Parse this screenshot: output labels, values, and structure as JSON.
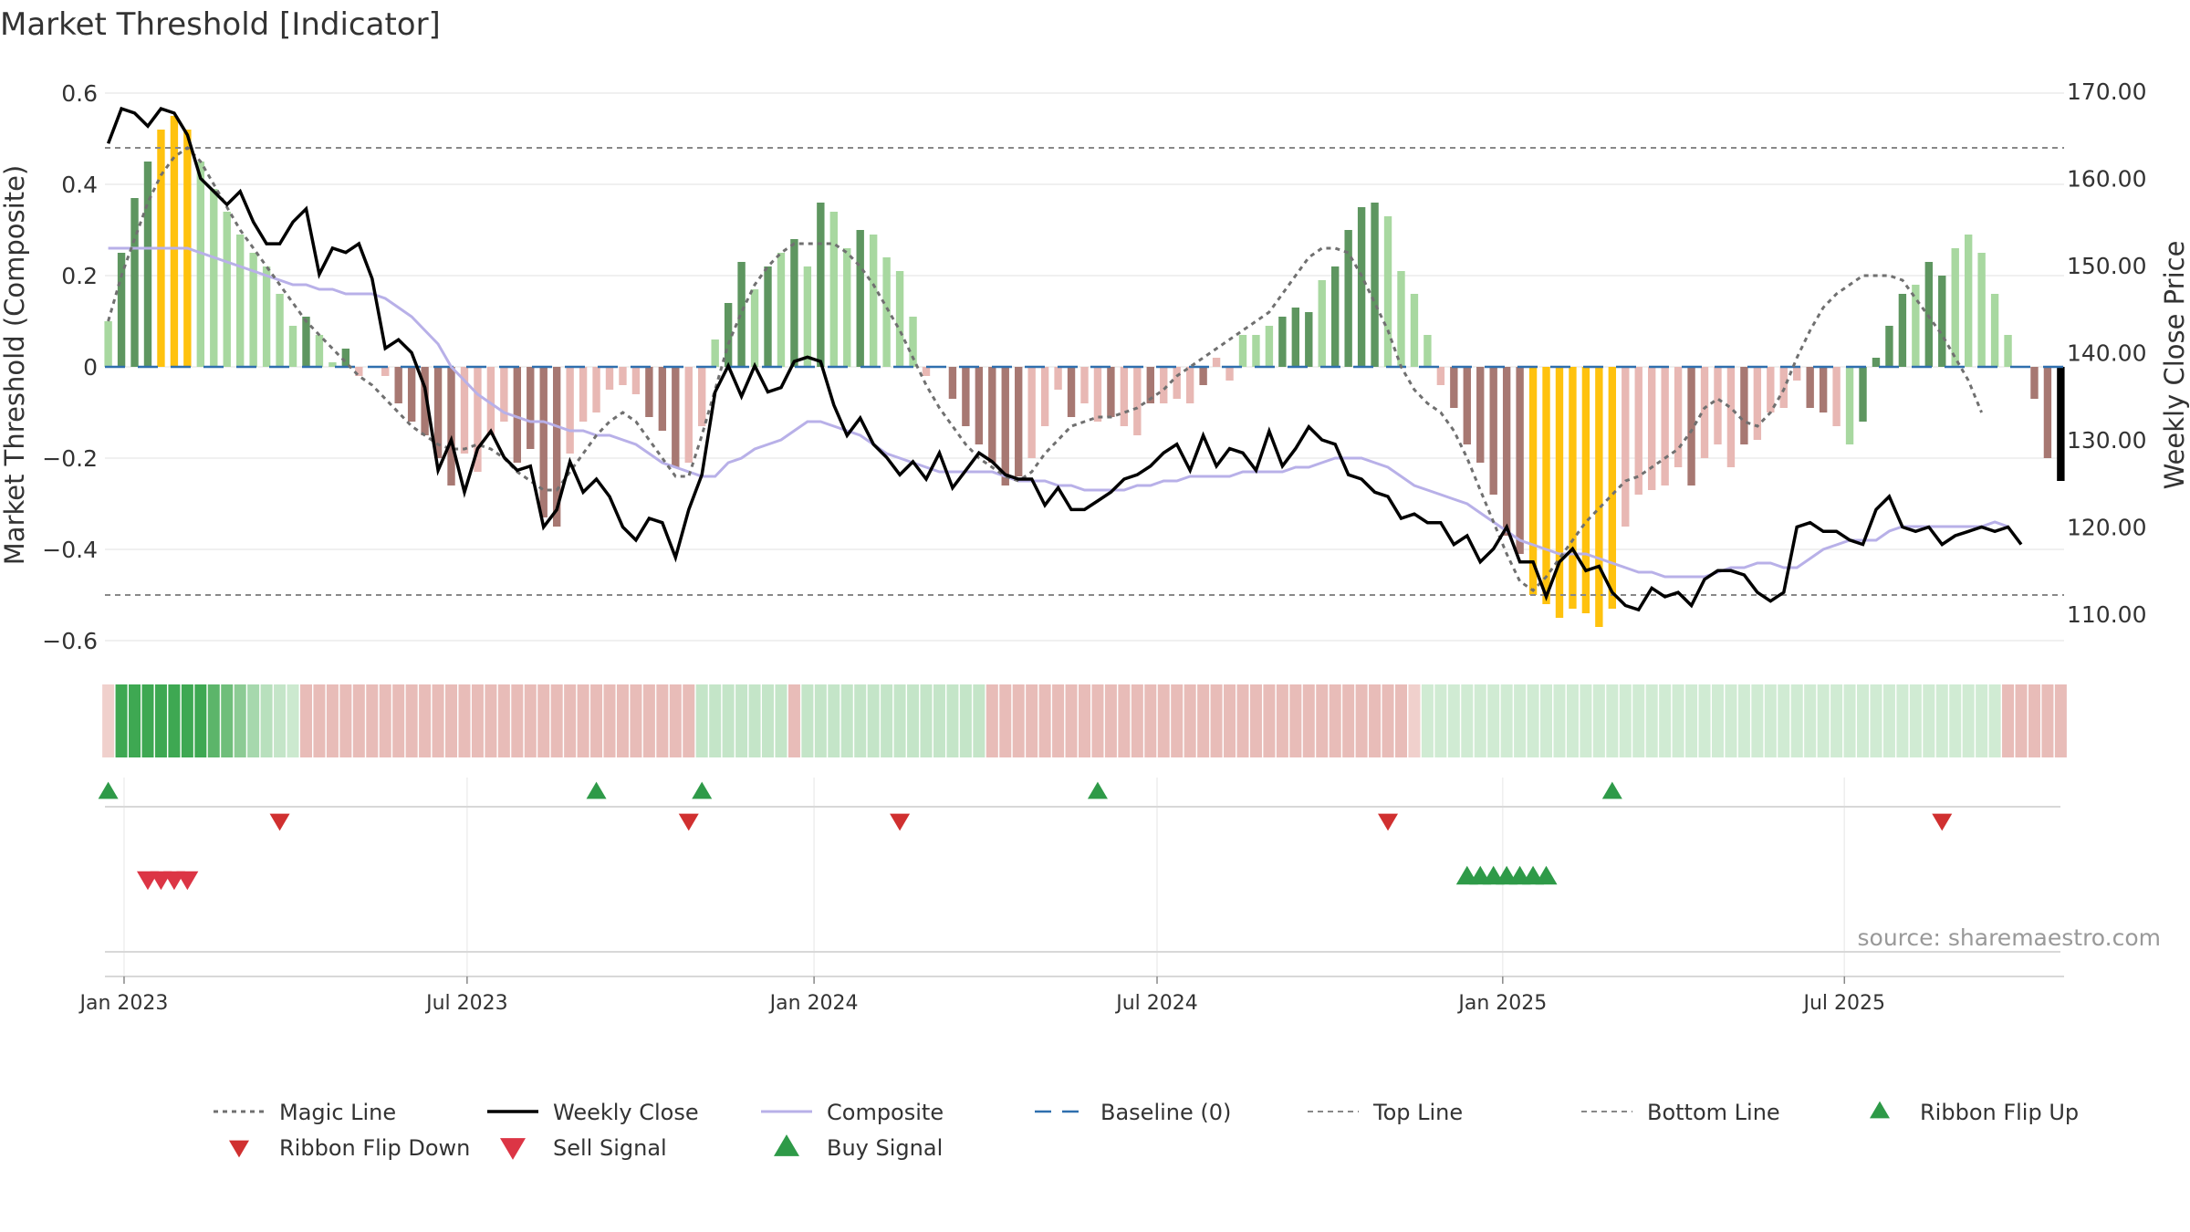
{
  "title": "Market Threshold [Indicator]",
  "source_note": "source: sharemaestro.com",
  "chart_data": {
    "type": "bar",
    "title": "Market Threshold [Indicator]",
    "ylabel": "Market Threshold (Composite)",
    "y2label": "Weekly Close Price",
    "ylim": [
      -0.6,
      0.6
    ],
    "y2lim": [
      110,
      170
    ],
    "yticks": [
      0.6,
      0.4,
      0.2,
      0,
      -0.2,
      -0.4,
      -0.6
    ],
    "ytick_labels": [
      "0.6",
      "0.4",
      "0.2",
      "0",
      "−0.2",
      "−0.4",
      "−0.6"
    ],
    "y2ticks": [
      170,
      160,
      150,
      140,
      130,
      120,
      110
    ],
    "y2tick_labels": [
      "170.00",
      "160.00",
      "150.00",
      "140.00",
      "130.00",
      "120.00",
      "110.00"
    ],
    "xticks": [
      {
        "label": "Jan 2023",
        "week": 1.2
      },
      {
        "label": "Jul 2023",
        "week": 27.2
      },
      {
        "label": "Jan 2024",
        "week": 53.5
      },
      {
        "label": "Jul 2024",
        "week": 79.5
      },
      {
        "label": "Jan 2025",
        "week": 105.7
      },
      {
        "label": "Jul 2025",
        "week": 131.6
      }
    ],
    "top_line": 0.48,
    "bottom_line": -0.5,
    "composite": [
      0.1,
      0.25,
      0.37,
      0.45,
      0.52,
      0.55,
      0.52,
      0.45,
      0.39,
      0.34,
      0.29,
      0.25,
      0.22,
      0.16,
      0.09,
      0.11,
      0.07,
      0.01,
      0.04,
      -0.02,
      0.0,
      -0.02,
      -0.08,
      -0.12,
      -0.15,
      -0.2,
      -0.26,
      -0.19,
      -0.23,
      -0.15,
      -0.12,
      -0.21,
      -0.18,
      -0.33,
      -0.35,
      -0.19,
      -0.12,
      -0.1,
      -0.05,
      -0.04,
      -0.06,
      -0.11,
      -0.14,
      -0.22,
      -0.21,
      -0.13,
      0.06,
      0.14,
      0.23,
      0.17,
      0.22,
      0.25,
      0.28,
      0.22,
      0.36,
      0.34,
      0.26,
      0.3,
      0.29,
      0.24,
      0.21,
      0.11,
      -0.02,
      0.0,
      -0.07,
      -0.13,
      -0.17,
      -0.21,
      -0.26,
      -0.24,
      -0.2,
      -0.13,
      -0.05,
      -0.11,
      -0.08,
      -0.12,
      -0.11,
      -0.13,
      -0.15,
      -0.08,
      -0.08,
      -0.07,
      -0.08,
      -0.04,
      0.02,
      -0.03,
      0.07,
      0.07,
      0.09,
      0.11,
      0.13,
      0.12,
      0.19,
      0.22,
      0.3,
      0.35,
      0.36,
      0.33,
      0.21,
      0.16,
      0.07,
      -0.04,
      -0.09,
      -0.17,
      -0.21,
      -0.28,
      -0.37,
      -0.41,
      -0.5,
      -0.52,
      -0.55,
      -0.53,
      -0.54,
      -0.57,
      -0.53,
      -0.35,
      -0.28,
      -0.27,
      -0.26,
      -0.22,
      -0.26,
      -0.2,
      -0.17,
      -0.22,
      -0.17,
      -0.16,
      -0.1,
      -0.09,
      -0.03,
      -0.09,
      -0.1,
      -0.13,
      -0.17,
      -0.12,
      0.02,
      0.09,
      0.16,
      0.18,
      0.23,
      0.2,
      0.26,
      0.29,
      0.25,
      0.16,
      0.07,
      0.0,
      -0.07,
      -0.2,
      -0.25
    ],
    "bar_colors": [
      "#a8d8a0",
      "#5e9660",
      "#5e9660",
      "#5e9660",
      "#ffc20e",
      "#ffc20e",
      "#ffc20e",
      "#a8d8a0",
      "#a8d8a0",
      "#a8d8a0",
      "#a8d8a0",
      "#a8d8a0",
      "#a8d8a0",
      "#a8d8a0",
      "#a8d8a0",
      "#5e9660",
      "#a8d8a0",
      "#a8d8a0",
      "#5e9660",
      "#e8b8b4",
      "#e8b8b4",
      "#e8b8b4",
      "#a77872",
      "#a77872",
      "#a77872",
      "#a77872",
      "#a77872",
      "#e8b8b4",
      "#e8b8b4",
      "#e8b8b4",
      "#e8b8b4",
      "#a77872",
      "#a77872",
      "#a77872",
      "#a77872",
      "#e8b8b4",
      "#e8b8b4",
      "#e8b8b4",
      "#e8b8b4",
      "#e8b8b4",
      "#e8b8b4",
      "#a77872",
      "#a77872",
      "#a77872",
      "#e8b8b4",
      "#e8b8b4",
      "#a8d8a0",
      "#5e9660",
      "#5e9660",
      "#a8d8a0",
      "#5e9660",
      "#a8d8a0",
      "#5e9660",
      "#a8d8a0",
      "#5e9660",
      "#a8d8a0",
      "#a8d8a0",
      "#5e9660",
      "#a8d8a0",
      "#a8d8a0",
      "#a8d8a0",
      "#a8d8a0",
      "#e8b8b4",
      "#e8b8b4",
      "#a77872",
      "#a77872",
      "#a77872",
      "#a77872",
      "#a77872",
      "#a77872",
      "#e8b8b4",
      "#e8b8b4",
      "#e8b8b4",
      "#a77872",
      "#e8b8b4",
      "#e8b8b4",
      "#a77872",
      "#e8b8b4",
      "#e8b8b4",
      "#a77872",
      "#e8b8b4",
      "#e8b8b4",
      "#e8b8b4",
      "#a77872",
      "#e8b8b4",
      "#e8b8b4",
      "#a8d8a0",
      "#a8d8a0",
      "#a8d8a0",
      "#5e9660",
      "#5e9660",
      "#5e9660",
      "#a8d8a0",
      "#5e9660",
      "#5e9660",
      "#5e9660",
      "#5e9660",
      "#a8d8a0",
      "#a8d8a0",
      "#a8d8a0",
      "#a8d8a0",
      "#e8b8b4",
      "#a77872",
      "#a77872",
      "#a77872",
      "#a77872",
      "#a77872",
      "#a77872",
      "#ffc20e",
      "#ffc20e",
      "#ffc20e",
      "#ffc20e",
      "#ffc20e",
      "#ffc20e",
      "#ffc20e",
      "#e8b8b4",
      "#e8b8b4",
      "#e8b8b4",
      "#e8b8b4",
      "#e8b8b4",
      "#a77872",
      "#e8b8b4",
      "#e8b8b4",
      "#e8b8b4",
      "#a77872",
      "#e8b8b4",
      "#e8b8b4",
      "#e8b8b4",
      "#e8b8b4",
      "#a77872",
      "#a77872",
      "#e8b8b4",
      "#a8d8a0",
      "#5e9660",
      "#5e9660",
      "#5e9660",
      "#5e9660",
      "#a8d8a0",
      "#5e9660",
      "#5e9660",
      "#a8d8a0",
      "#a8d8a0",
      "#a8d8a0",
      "#a8d8a0",
      "#a8d8a0",
      "#a77872",
      "#a77872",
      "#a77872"
    ],
    "weekly_close": [
      164,
      168,
      167.5,
      166,
      168,
      167.5,
      165,
      160,
      158.5,
      157,
      158.5,
      155,
      152.5,
      152.5,
      155,
      156.5,
      149,
      152,
      151.5,
      152.5,
      148.5,
      140.5,
      141.5,
      140,
      136,
      126.5,
      130,
      124,
      129,
      131,
      128,
      126.5,
      127,
      120,
      122,
      127.5,
      124,
      125.5,
      123.5,
      120,
      118.5,
      121,
      120.5,
      116.5,
      122,
      126,
      135.5,
      138.5,
      135,
      138.5,
      135.5,
      136,
      139,
      139.5,
      139,
      134,
      130.5,
      132.5,
      129.5,
      128,
      126,
      127.5,
      125.5,
      128.5,
      124.5,
      126.5,
      128.5,
      127.5,
      126,
      125.5,
      125.5,
      122.5,
      124.5,
      122,
      122,
      123,
      124,
      125.5,
      126,
      127,
      128.5,
      129.5,
      126.5,
      130.5,
      127,
      129,
      128.5,
      126.5,
      131,
      127,
      129,
      131.5,
      130,
      129.5,
      126,
      125.5,
      124,
      123.5,
      121,
      121.5,
      120.5,
      120.5,
      118,
      119,
      116,
      117.5,
      120,
      116,
      116,
      112,
      116,
      117.5,
      115,
      115.5,
      112.5,
      111,
      110.5,
      113,
      112,
      112.5,
      111,
      114,
      115,
      115,
      114.5,
      112.5,
      111.5,
      112.5,
      120,
      120.5,
      119.5,
      119.5,
      118.5,
      118,
      122,
      123.5,
      120,
      119.5,
      120,
      118,
      119,
      119.5,
      120,
      119.5,
      120,
      118
    ],
    "magic_line": [
      0.1,
      0.2,
      0.28,
      0.36,
      0.42,
      0.46,
      0.48,
      0.45,
      0.4,
      0.35,
      0.3,
      0.26,
      0.22,
      0.18,
      0.14,
      0.1,
      0.07,
      0.04,
      0.01,
      -0.02,
      -0.04,
      -0.07,
      -0.1,
      -0.13,
      -0.15,
      -0.17,
      -0.18,
      -0.18,
      -0.17,
      -0.18,
      -0.2,
      -0.23,
      -0.25,
      -0.27,
      -0.27,
      -0.23,
      -0.19,
      -0.15,
      -0.12,
      -0.1,
      -0.12,
      -0.16,
      -0.2,
      -0.24,
      -0.24,
      -0.15,
      -0.05,
      0.05,
      0.12,
      0.18,
      0.22,
      0.25,
      0.27,
      0.27,
      0.27,
      0.27,
      0.25,
      0.22,
      0.18,
      0.13,
      0.08,
      0.02,
      -0.04,
      -0.09,
      -0.13,
      -0.17,
      -0.2,
      -0.22,
      -0.24,
      -0.25,
      -0.23,
      -0.19,
      -0.16,
      -0.13,
      -0.12,
      -0.11,
      -0.11,
      -0.1,
      -0.09,
      -0.07,
      -0.05,
      -0.02,
      0.0,
      0.02,
      0.04,
      0.06,
      0.08,
      0.1,
      0.12,
      0.16,
      0.2,
      0.24,
      0.26,
      0.26,
      0.25,
      0.2,
      0.14,
      0.08,
      0.0,
      -0.05,
      -0.08,
      -0.1,
      -0.14,
      -0.2,
      -0.27,
      -0.34,
      -0.41,
      -0.47,
      -0.49,
      -0.46,
      -0.42,
      -0.38,
      -0.34,
      -0.31,
      -0.28,
      -0.25,
      -0.24,
      -0.22,
      -0.2,
      -0.18,
      -0.14,
      -0.09,
      -0.07,
      -0.09,
      -0.12,
      -0.13,
      -0.1,
      -0.05,
      0.02,
      0.08,
      0.13,
      0.16,
      0.18,
      0.2,
      0.2,
      0.2,
      0.19,
      0.15,
      0.11,
      0.07,
      0.02,
      -0.03,
      -0.1
    ],
    "composite_smooth": [
      0.26,
      0.26,
      0.26,
      0.26,
      0.26,
      0.26,
      0.26,
      0.25,
      0.24,
      0.23,
      0.22,
      0.21,
      0.2,
      0.19,
      0.18,
      0.18,
      0.17,
      0.17,
      0.16,
      0.16,
      0.16,
      0.15,
      0.13,
      0.11,
      0.08,
      0.05,
      0.0,
      -0.03,
      -0.06,
      -0.08,
      -0.1,
      -0.11,
      -0.12,
      -0.12,
      -0.13,
      -0.14,
      -0.14,
      -0.15,
      -0.15,
      -0.16,
      -0.17,
      -0.19,
      -0.21,
      -0.22,
      -0.23,
      -0.24,
      -0.24,
      -0.21,
      -0.2,
      -0.18,
      -0.17,
      -0.16,
      -0.14,
      -0.12,
      -0.12,
      -0.13,
      -0.14,
      -0.15,
      -0.17,
      -0.19,
      -0.2,
      -0.21,
      -0.22,
      -0.23,
      -0.23,
      -0.23,
      -0.23,
      -0.23,
      -0.24,
      -0.25,
      -0.25,
      -0.25,
      -0.26,
      -0.26,
      -0.27,
      -0.27,
      -0.27,
      -0.27,
      -0.26,
      -0.26,
      -0.25,
      -0.25,
      -0.24,
      -0.24,
      -0.24,
      -0.24,
      -0.23,
      -0.23,
      -0.23,
      -0.23,
      -0.22,
      -0.22,
      -0.21,
      -0.2,
      -0.2,
      -0.2,
      -0.21,
      -0.22,
      -0.24,
      -0.26,
      -0.27,
      -0.28,
      -0.29,
      -0.3,
      -0.32,
      -0.34,
      -0.36,
      -0.38,
      -0.39,
      -0.4,
      -0.41,
      -0.41,
      -0.41,
      -0.42,
      -0.43,
      -0.44,
      -0.45,
      -0.45,
      -0.46,
      -0.46,
      -0.46,
      -0.46,
      -0.45,
      -0.44,
      -0.44,
      -0.43,
      -0.43,
      -0.44,
      -0.44,
      -0.42,
      -0.4,
      -0.39,
      -0.38,
      -0.38,
      -0.38,
      -0.36,
      -0.35,
      -0.35,
      -0.35,
      -0.35,
      -0.35,
      -0.35,
      -0.35,
      -0.34,
      -0.35
    ],
    "ribbon_colors": [
      "#f0d0cc",
      "#3ea852",
      "#3ea852",
      "#3ea852",
      "#3ea852",
      "#3ea852",
      "#3ea852",
      "#3ea852",
      "#5cb56a",
      "#6fbe7a",
      "#8ccb94",
      "#a6d8ad",
      "#b8e0bd",
      "#c4e5c8",
      "#cce9cf",
      "#e8bcb8",
      "#e8bcb8",
      "#e8bcb8",
      "#e8bcb8",
      "#e8bcb8",
      "#e8bcb8",
      "#e8bcb8",
      "#e8bcb8",
      "#e8bcb8",
      "#e8bcb8",
      "#e8bcb8",
      "#e8bcb8",
      "#e8bcb8",
      "#e8bcb8",
      "#e8bcb8",
      "#e8bcb8",
      "#e8bcb8",
      "#e8bcb8",
      "#e8bcb8",
      "#e8bcb8",
      "#e8bcb8",
      "#e8bcb8",
      "#e8bcb8",
      "#e8bcb8",
      "#e8bcb8",
      "#e8bcb8",
      "#e8bcb8",
      "#e8bcb8",
      "#e8bcb8",
      "#e8bcb8",
      "#c4e5c8",
      "#c4e5c8",
      "#c4e5c8",
      "#c4e5c8",
      "#c4e5c8",
      "#c4e5c8",
      "#c4e5c8",
      "#e8bcb8",
      "#c4e5c8",
      "#c4e5c8",
      "#c4e5c8",
      "#c4e5c8",
      "#c4e5c8",
      "#c4e5c8",
      "#c4e5c8",
      "#c4e5c8",
      "#c4e5c8",
      "#c4e5c8",
      "#c4e5c8",
      "#c4e5c8",
      "#c4e5c8",
      "#c4e5c8",
      "#e8bcb8",
      "#e8bcb8",
      "#e8bcb8",
      "#e8bcb8",
      "#e8bcb8",
      "#e8bcb8",
      "#e8bcb8",
      "#e8bcb8",
      "#e8bcb8",
      "#e8bcb8",
      "#e8bcb8",
      "#e8bcb8",
      "#e8bcb8",
      "#e8bcb8",
      "#e8bcb8",
      "#e8bcb8",
      "#e8bcb8",
      "#e8bcb8",
      "#e8bcb8",
      "#e8bcb8",
      "#e8bcb8",
      "#e8bcb8",
      "#e8bcb8",
      "#e8bcb8",
      "#e8bcb8",
      "#e8bcb8",
      "#e8bcb8",
      "#e8bcb8",
      "#e8bcb8",
      "#e8bcb8",
      "#e8bcb8",
      "#e8bcb8",
      "#f0d0cc",
      "#d0ebd3",
      "#d0ebd3",
      "#d0ebd3",
      "#d0ebd3",
      "#d0ebd3",
      "#d0ebd3",
      "#d0ebd3",
      "#d0ebd3",
      "#d0ebd3",
      "#d0ebd3",
      "#d0ebd3",
      "#d0ebd3",
      "#d0ebd3",
      "#d0ebd3",
      "#d0ebd3",
      "#d0ebd3",
      "#d0ebd3",
      "#d0ebd3",
      "#d0ebd3",
      "#d0ebd3",
      "#d0ebd3",
      "#d0ebd3",
      "#d0ebd3",
      "#d0ebd3",
      "#d0ebd3",
      "#d0ebd3",
      "#d0ebd3",
      "#d0ebd3",
      "#d0ebd3",
      "#d0ebd3",
      "#d0ebd3",
      "#d0ebd3",
      "#d0ebd3",
      "#d0ebd3",
      "#d0ebd3",
      "#d0ebd3",
      "#d0ebd3",
      "#d0ebd3",
      "#d0ebd3",
      "#d0ebd3",
      "#d0ebd3",
      "#d0ebd3",
      "#d0ebd3",
      "#d0ebd3",
      "#e8bcb8",
      "#e8bcb8",
      "#e8bcb8",
      "#e8bcb8",
      "#e8bcb8"
    ],
    "ribbon_flip_up_weeks": [
      0,
      37,
      45,
      75,
      114
    ],
    "ribbon_flip_down_weeks": [
      13,
      44,
      60,
      97,
      139
    ],
    "sell_signal_weeks": [
      3,
      4,
      5,
      6
    ],
    "buy_signal_weeks": [
      103,
      104,
      105,
      106,
      107,
      108,
      109
    ],
    "legend": [
      {
        "key": "magic",
        "label": "Magic Line"
      },
      {
        "key": "close",
        "label": "Weekly Close"
      },
      {
        "key": "composite",
        "label": "Composite"
      },
      {
        "key": "baseline",
        "label": "Baseline (0)"
      },
      {
        "key": "top",
        "label": "Top Line"
      },
      {
        "key": "bottom",
        "label": "Bottom Line"
      },
      {
        "key": "flipup",
        "label": "Ribbon Flip Up"
      },
      {
        "key": "flipdown",
        "label": "Ribbon Flip Down"
      },
      {
        "key": "sell",
        "label": "Sell Signal"
      },
      {
        "key": "buy",
        "label": "Buy Signal"
      }
    ],
    "colors": {
      "magic": "#707070",
      "close": "#000000",
      "composite": "#b8b0e8",
      "baseline": "#2f6fae",
      "threshold": "#888888",
      "flip_up": "#2e9a48",
      "flip_down": "#d03030",
      "sell": "#dc3545",
      "buy": "#2e9a48"
    }
  }
}
